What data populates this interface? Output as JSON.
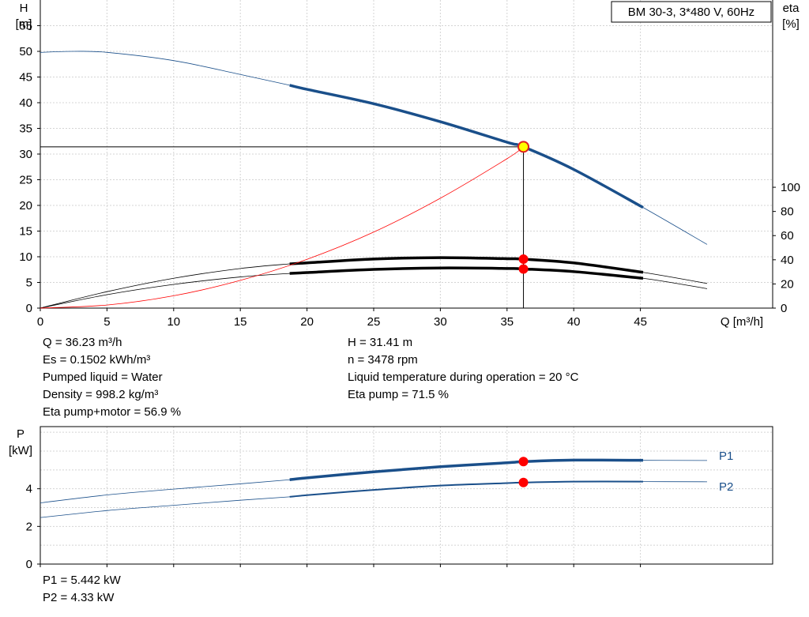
{
  "chart_data": [
    {
      "type": "line",
      "title": "BM 30-3, 3*480 V, 60Hz",
      "xlabel": "Q [m³/h]",
      "ylabel": "H",
      "ylabel_unit": "[m]",
      "y2label": "eta",
      "y2label_unit": "[%]",
      "xlim": [
        0,
        50
      ],
      "ylim": [
        0,
        60
      ],
      "y2lim": [
        0,
        255
      ],
      "x_ticks": [
        "0",
        "5",
        "10",
        "15",
        "20",
        "25",
        "30",
        "35",
        "40",
        "45"
      ],
      "y_ticks": [
        "0",
        "5",
        "10",
        "15",
        "20",
        "25",
        "30",
        "35",
        "40",
        "45",
        "50",
        "55"
      ],
      "y2_ticks": [
        "0",
        "20",
        "40",
        "60",
        "80",
        "100"
      ],
      "grid": true,
      "operating_range": [
        18.7,
        45.2
      ],
      "series": [
        {
          "axis": "left",
          "color": "#1a4f8a",
          "x": [
            0,
            2.5,
            5,
            10,
            15,
            18.7,
            20,
            25,
            30,
            35,
            36.23,
            40,
            45.2,
            50
          ],
          "y": [
            49.8,
            50.0,
            49.8,
            48.2,
            45.5,
            43.4,
            42.6,
            39.8,
            36.3,
            32.3,
            31.4,
            27.0,
            19.6,
            12.4
          ]
        },
        {
          "axis": "right",
          "color": "#000000",
          "x": [
            0,
            5,
            10,
            15,
            18.7,
            20,
            25,
            30,
            35,
            36.23,
            40,
            45.2,
            50
          ],
          "y": [
            0,
            13.6,
            24.7,
            32.8,
            36.6,
            37.4,
            40.6,
            41.8,
            40.9,
            40.5,
            37.4,
            29.6,
            20.4
          ]
        },
        {
          "axis": "right",
          "color": "#000000",
          "x": [
            0,
            5,
            10,
            15,
            18.7,
            20,
            25,
            30,
            35,
            36.23,
            40,
            45.2,
            50
          ],
          "y": [
            0,
            11.1,
            19.6,
            25.8,
            28.7,
            29.4,
            32.0,
            33.2,
            32.8,
            32.4,
            30.2,
            24.7,
            16.1
          ]
        },
        {
          "axis": "left",
          "color": "#ff0000",
          "x": [
            0,
            5,
            10,
            15,
            20,
            25,
            30,
            35,
            36.23
          ],
          "y": [
            0,
            0.6,
            2.4,
            5.4,
            9.5,
            14.8,
            21.4,
            29.1,
            31.4
          ]
        }
      ],
      "operating_point": {
        "x": 36.23,
        "y": 31.41
      },
      "eta_points": [
        {
          "x": 36.23,
          "y": 40.5
        },
        {
          "x": 36.23,
          "y": 32.4
        }
      ]
    },
    {
      "type": "line",
      "ylabel": "P",
      "ylabel_unit": "[kW]",
      "xlim": [
        0,
        50
      ],
      "ylim": [
        0,
        7.3
      ],
      "y_ticks": [
        "0",
        "2",
        "4"
      ],
      "grid": true,
      "operating_range": [
        18.7,
        45.2
      ],
      "series": [
        {
          "name": "P1",
          "color": "#1a4f8a",
          "x": [
            0,
            5,
            10,
            15,
            18.7,
            20,
            25,
            30,
            35,
            36.23,
            40,
            45.2,
            50
          ],
          "y": [
            3.25,
            3.67,
            3.98,
            4.26,
            4.48,
            4.58,
            4.9,
            5.17,
            5.38,
            5.44,
            5.52,
            5.51,
            5.5
          ]
        },
        {
          "name": "P2",
          "color": "#1a4f8a",
          "x": [
            0,
            5,
            10,
            15,
            18.7,
            20,
            25,
            30,
            35,
            36.23,
            40,
            45.2,
            50
          ],
          "y": [
            2.47,
            2.84,
            3.12,
            3.39,
            3.57,
            3.66,
            3.94,
            4.17,
            4.3,
            4.33,
            4.38,
            4.38,
            4.37
          ]
        }
      ],
      "operating_points": [
        {
          "x": 36.23,
          "y": 5.442
        },
        {
          "x": 36.23,
          "y": 4.33
        }
      ]
    }
  ],
  "info": {
    "left": [
      "Q = 36.23 m³/h",
      "Es = 0.1502 kWh/m³",
      "Pumped liquid = Water",
      "Density = 998.2 kg/m³",
      "Eta pump+motor = 56.9 %"
    ],
    "right": [
      "H = 31.41 m",
      "n = 3478 rpm",
      "Liquid temperature during operation = 20 °C",
      "Eta pump = 71.5 %"
    ],
    "power": [
      "P1 = 5.442 kW",
      "P2 = 4.33 kW"
    ]
  }
}
